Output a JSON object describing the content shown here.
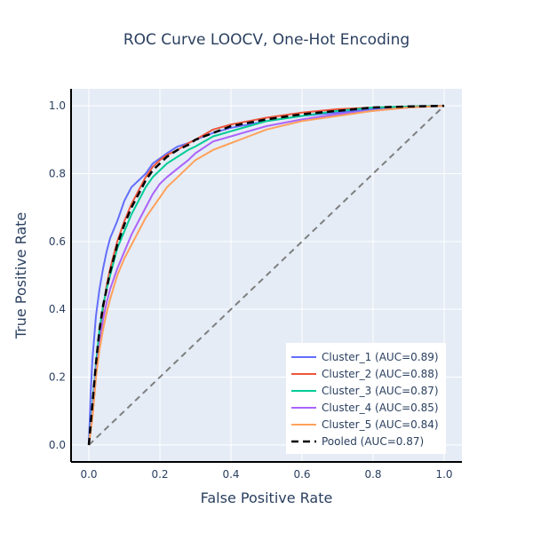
{
  "chart_data": {
    "type": "line",
    "title": "ROC Curve LOOCV, One-Hot Encoding",
    "xlabel": "False Positive Rate",
    "ylabel": "True Positive Rate",
    "xlim": [
      -0.05,
      1.05
    ],
    "ylim": [
      -0.05,
      1.05
    ],
    "x_ticks": [
      0,
      0.2,
      0.4,
      0.6,
      0.8,
      1.0
    ],
    "x_tick_labels": [
      "0.0",
      "0.2",
      "0.4",
      "0.6",
      "0.8",
      "1.0"
    ],
    "y_ticks": [
      0,
      0.2,
      0.4,
      0.6,
      0.8,
      1.0
    ],
    "y_tick_labels": [
      "0.0",
      "0.2",
      "0.4",
      "0.6",
      "0.8",
      "1.0"
    ],
    "grid": true,
    "legend_position": "bottom-right",
    "colors": {
      "plot_bg": "#e5ecf6",
      "grid": "#ffffff",
      "axis_line": "#000000",
      "text": "#2a3f5f"
    },
    "reference_line": {
      "x": [
        0,
        1
      ],
      "y": [
        0,
        1
      ],
      "color": "#7f7f7f",
      "dash": "dash"
    },
    "series": [
      {
        "name": "Cluster_1 (AUC=0.89)",
        "color": "#636efa",
        "dash": "solid",
        "x": [
          0,
          0.005,
          0.01,
          0.02,
          0.03,
          0.04,
          0.05,
          0.06,
          0.07,
          0.08,
          0.09,
          0.1,
          0.12,
          0.14,
          0.16,
          0.18,
          0.2,
          0.22,
          0.25,
          0.28,
          0.3,
          0.35,
          0.4,
          0.5,
          0.6,
          0.7,
          0.8,
          0.9,
          1.0
        ],
        "y": [
          0,
          0.15,
          0.25,
          0.38,
          0.46,
          0.52,
          0.57,
          0.61,
          0.635,
          0.66,
          0.69,
          0.72,
          0.76,
          0.78,
          0.8,
          0.83,
          0.845,
          0.86,
          0.88,
          0.89,
          0.9,
          0.92,
          0.935,
          0.955,
          0.97,
          0.98,
          0.99,
          0.995,
          1.0
        ]
      },
      {
        "name": "Cluster_2 (AUC=0.88)",
        "color": "#ef553b",
        "dash": "solid",
        "x": [
          0,
          0.01,
          0.02,
          0.03,
          0.04,
          0.05,
          0.06,
          0.08,
          0.1,
          0.12,
          0.14,
          0.16,
          0.18,
          0.2,
          0.22,
          0.25,
          0.28,
          0.3,
          0.35,
          0.4,
          0.45,
          0.5,
          0.6,
          0.7,
          0.8,
          0.9,
          1.0
        ],
        "y": [
          0,
          0.08,
          0.2,
          0.32,
          0.4,
          0.47,
          0.52,
          0.6,
          0.66,
          0.71,
          0.75,
          0.79,
          0.82,
          0.84,
          0.855,
          0.87,
          0.89,
          0.9,
          0.93,
          0.945,
          0.955,
          0.965,
          0.98,
          0.99,
          0.995,
          0.998,
          1.0
        ]
      },
      {
        "name": "Cluster_3 (AUC=0.87)",
        "color": "#00cc96",
        "dash": "solid",
        "x": [
          0,
          0.01,
          0.02,
          0.03,
          0.04,
          0.05,
          0.06,
          0.08,
          0.1,
          0.12,
          0.14,
          0.16,
          0.18,
          0.2,
          0.22,
          0.25,
          0.28,
          0.3,
          0.35,
          0.4,
          0.45,
          0.5,
          0.6,
          0.7,
          0.8,
          0.9,
          1.0
        ],
        "y": [
          0,
          0.12,
          0.24,
          0.34,
          0.41,
          0.46,
          0.5,
          0.58,
          0.63,
          0.68,
          0.72,
          0.76,
          0.79,
          0.81,
          0.83,
          0.85,
          0.87,
          0.88,
          0.91,
          0.925,
          0.94,
          0.955,
          0.97,
          0.985,
          0.995,
          0.998,
          1.0
        ]
      },
      {
        "name": "Cluster_4 (AUC=0.85)",
        "color": "#ab63fa",
        "dash": "solid",
        "x": [
          0,
          0.01,
          0.02,
          0.03,
          0.04,
          0.05,
          0.06,
          0.08,
          0.1,
          0.12,
          0.14,
          0.16,
          0.18,
          0.2,
          0.22,
          0.25,
          0.28,
          0.3,
          0.35,
          0.4,
          0.45,
          0.5,
          0.6,
          0.7,
          0.8,
          0.9,
          1.0
        ],
        "y": [
          0,
          0.1,
          0.22,
          0.3,
          0.37,
          0.42,
          0.46,
          0.52,
          0.57,
          0.62,
          0.66,
          0.7,
          0.74,
          0.77,
          0.79,
          0.815,
          0.84,
          0.86,
          0.895,
          0.91,
          0.925,
          0.94,
          0.96,
          0.975,
          0.985,
          0.995,
          1.0
        ]
      },
      {
        "name": "Cluster_5 (AUC=0.84)",
        "color": "#ffa15a",
        "dash": "solid",
        "x": [
          0,
          0.01,
          0.02,
          0.03,
          0.04,
          0.05,
          0.06,
          0.08,
          0.1,
          0.12,
          0.14,
          0.16,
          0.18,
          0.2,
          0.22,
          0.25,
          0.28,
          0.3,
          0.35,
          0.4,
          0.45,
          0.5,
          0.6,
          0.7,
          0.8,
          0.9,
          1.0
        ],
        "y": [
          0,
          0.08,
          0.2,
          0.28,
          0.34,
          0.39,
          0.43,
          0.5,
          0.55,
          0.59,
          0.63,
          0.67,
          0.7,
          0.73,
          0.76,
          0.79,
          0.82,
          0.84,
          0.87,
          0.89,
          0.91,
          0.93,
          0.955,
          0.97,
          0.985,
          0.995,
          1.0
        ]
      },
      {
        "name": "Pooled (AUC=0.87)",
        "color": "#000000",
        "dash": "dash",
        "x": [
          0,
          0.01,
          0.02,
          0.03,
          0.04,
          0.05,
          0.06,
          0.08,
          0.1,
          0.12,
          0.14,
          0.16,
          0.18,
          0.2,
          0.22,
          0.25,
          0.28,
          0.3,
          0.35,
          0.4,
          0.45,
          0.5,
          0.6,
          0.7,
          0.8,
          0.9,
          1.0
        ],
        "y": [
          0,
          0.12,
          0.24,
          0.34,
          0.41,
          0.46,
          0.51,
          0.59,
          0.65,
          0.7,
          0.74,
          0.78,
          0.81,
          0.83,
          0.85,
          0.87,
          0.885,
          0.9,
          0.92,
          0.94,
          0.95,
          0.96,
          0.975,
          0.985,
          0.995,
          0.998,
          1.0
        ]
      }
    ]
  }
}
